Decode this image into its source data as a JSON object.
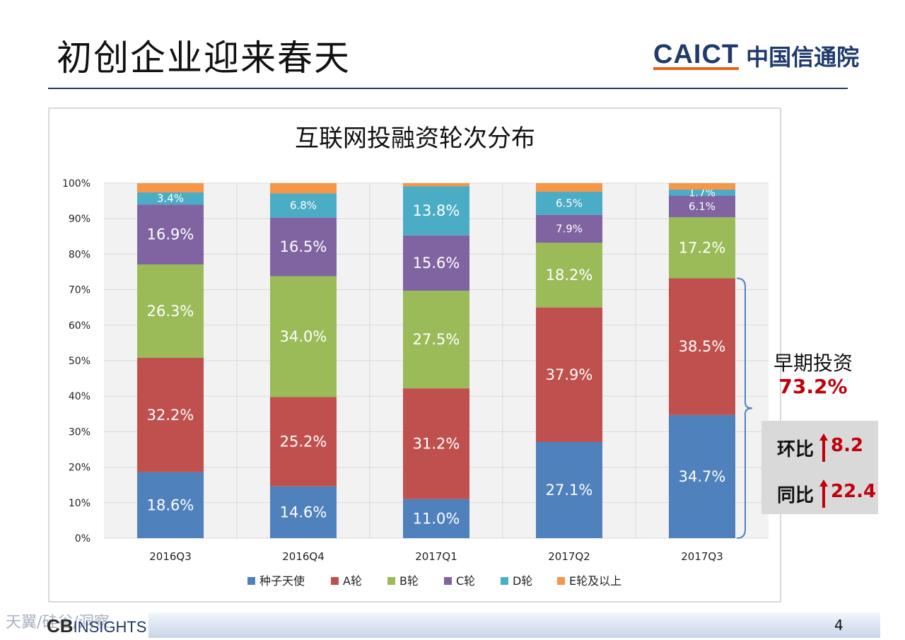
{
  "slide": {
    "title": "初创企业迎来春天",
    "page_number": "4"
  },
  "brand": {
    "en": "CAICT",
    "cn": "中国信通院"
  },
  "footer": {
    "logo_cb": "CB",
    "logo_rest": "INSIGHTS",
    "watermark": "天翼/硅谷/洞察"
  },
  "chart_data": {
    "type": "bar",
    "stacked": true,
    "percent": true,
    "title": "互联网投融资轮次分布",
    "categories": [
      "2016Q3",
      "2016Q4",
      "2017Q1",
      "2017Q2",
      "2017Q3"
    ],
    "y_ticks": [
      "0%",
      "10%",
      "20%",
      "30%",
      "40%",
      "50%",
      "60%",
      "70%",
      "80%",
      "90%",
      "100%"
    ],
    "ylim": [
      0,
      100
    ],
    "grid": true,
    "legend_position": "bottom",
    "series": [
      {
        "name": "种子天使",
        "color": "#4f81bd",
        "values": [
          18.6,
          14.6,
          11.0,
          27.1,
          34.7
        ],
        "labels": [
          "18.6%",
          "14.6%",
          "11.0%",
          "27.1%",
          "34.7%"
        ]
      },
      {
        "name": "A轮",
        "color": "#c0504d",
        "values": [
          32.2,
          25.2,
          31.2,
          37.9,
          38.5
        ],
        "labels": [
          "32.2%",
          "25.2%",
          "31.2%",
          "37.9%",
          "38.5%"
        ]
      },
      {
        "name": "B轮",
        "color": "#9bbb59",
        "values": [
          26.3,
          34.0,
          27.5,
          18.2,
          17.2
        ],
        "labels": [
          "26.3%",
          "34.0%",
          "27.5%",
          "18.2%",
          "17.2%"
        ]
      },
      {
        "name": "C轮",
        "color": "#8064a2",
        "values": [
          16.9,
          16.5,
          15.6,
          7.9,
          6.1
        ],
        "labels": [
          "16.9%",
          "16.5%",
          "15.6%",
          "7.9%",
          "6.1%"
        ]
      },
      {
        "name": "D轮",
        "color": "#4bacc6",
        "values": [
          3.4,
          6.8,
          13.8,
          6.5,
          1.7
        ],
        "labels": [
          "3.4%",
          "6.8%",
          "13.8%",
          "6.5%",
          "1.7%"
        ]
      },
      {
        "name": "E轮及以上",
        "color": "#f79646",
        "values": [
          2.6,
          2.9,
          0.9,
          2.4,
          1.8
        ],
        "labels": [
          "",
          "",
          "",
          "",
          ""
        ]
      }
    ],
    "annotation": {
      "label": "早期投资",
      "value": "73.2%",
      "changes": [
        {
          "label": "环比",
          "value": "8.2"
        },
        {
          "label": "同比",
          "value": "22.4"
        }
      ],
      "arrow_color": "#c0000a"
    }
  }
}
